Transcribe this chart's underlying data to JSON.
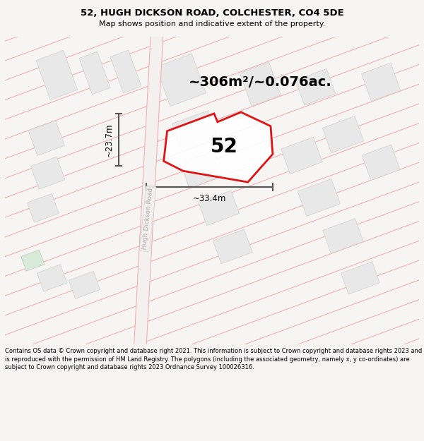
{
  "title": "52, HUGH DICKSON ROAD, COLCHESTER, CO4 5DE",
  "subtitle": "Map shows position and indicative extent of the property.",
  "footer": "Contains OS data © Crown copyright and database right 2021. This information is subject to Crown copyright and database rights 2023 and is reproduced with the permission of HM Land Registry. The polygons (including the associated geometry, namely x, y co-ordinates) are subject to Crown copyright and database rights 2023 Ordnance Survey 100026316.",
  "area_label": "~306m²/~0.076ac.",
  "number_label": "52",
  "dim_width": "~33.4m",
  "dim_height": "~23.7m",
  "road_label": "Hugh Dickson Road",
  "bg_color": "#f7f4f4",
  "map_bg": "#ffffff",
  "road_line_color": "#f0a8a8",
  "plot_outline_color": "#dd0000",
  "dim_line_color": "#555555",
  "fig_width": 6.0,
  "fig_height": 6.25,
  "title_fontsize": 9.5,
  "subtitle_fontsize": 8.0,
  "footer_fontsize": 6.0
}
